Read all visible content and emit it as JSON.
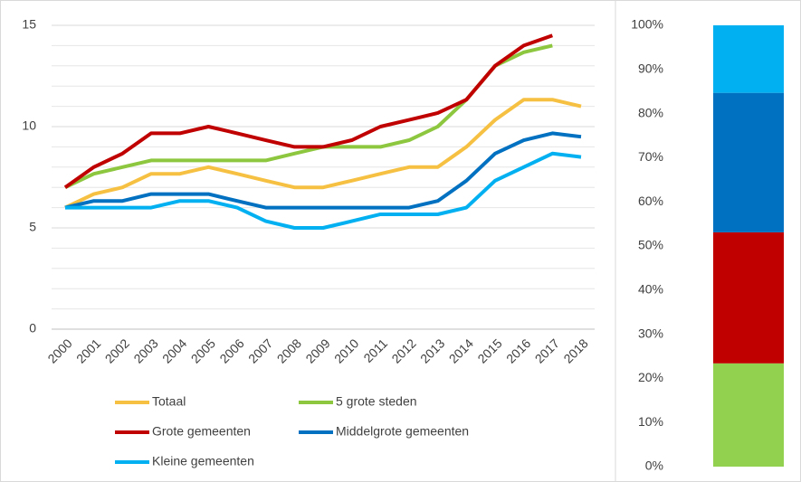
{
  "chart_data": [
    {
      "type": "line",
      "x": [
        2000,
        2001,
        2002,
        2003,
        2004,
        2005,
        2006,
        2007,
        2008,
        2009,
        2010,
        2011,
        2012,
        2013,
        2014,
        2015,
        2016,
        2017,
        2018
      ],
      "xlim": [
        2000,
        2018
      ],
      "ylim": [
        0,
        15
      ],
      "yticks": [
        0,
        5,
        10,
        15
      ],
      "minor_yticks": [
        1,
        2,
        3,
        4,
        6,
        7,
        8,
        9,
        11,
        12,
        13,
        14
      ],
      "grid": true,
      "series": [
        {
          "name": "Totaal",
          "color": "#f6c142",
          "values": [
            6,
            6.67,
            7,
            7.67,
            7.67,
            8,
            7.67,
            7.33,
            7,
            7,
            7.33,
            7.67,
            8,
            8,
            9,
            10.33,
            11.33,
            11.33,
            11
          ]
        },
        {
          "name": "5 grote steden",
          "color": "#8dc63f",
          "values": [
            7,
            7.67,
            8,
            8.33,
            8.33,
            8.33,
            8.33,
            8.33,
            8.67,
            9,
            9,
            9,
            9.33,
            10,
            11.33,
            13,
            13.67,
            14,
            null
          ]
        },
        {
          "name": "Grote gemeenten",
          "color": "#c00000",
          "values": [
            7,
            8,
            8.67,
            9.67,
            9.67,
            10,
            9.67,
            9.33,
            9,
            9,
            9.33,
            10,
            10.33,
            10.67,
            11.33,
            13,
            14,
            14.5,
            null
          ]
        },
        {
          "name": "Middelgrote gemeenten",
          "color": "#0070c0",
          "values": [
            6,
            6.33,
            6.33,
            6.67,
            6.67,
            6.67,
            6.33,
            6,
            6,
            6,
            6,
            6,
            6,
            6.33,
            7.33,
            8.67,
            9.33,
            9.67,
            9.5
          ]
        },
        {
          "name": "Kleine gemeenten",
          "color": "#00b0f0",
          "values": [
            6,
            6,
            6,
            6,
            6.33,
            6.33,
            6,
            5.33,
            5,
            5,
            5.33,
            5.67,
            5.67,
            5.67,
            6,
            7.33,
            8,
            8.67,
            8.5
          ]
        }
      ]
    },
    {
      "type": "stacked-bar",
      "ylim": [
        0,
        100
      ],
      "yticks": [
        {
          "value": 0,
          "label": "0%"
        },
        {
          "value": 10,
          "label": "10%"
        },
        {
          "value": 20,
          "label": "20%"
        },
        {
          "value": 30,
          "label": "30%"
        },
        {
          "value": 40,
          "label": "40%"
        },
        {
          "value": 50,
          "label": "50%"
        },
        {
          "value": 60,
          "label": "60%"
        },
        {
          "value": 70,
          "label": "70%"
        },
        {
          "value": 80,
          "label": "80%"
        },
        {
          "value": 90,
          "label": "90%"
        },
        {
          "value": 100,
          "label": "100%"
        }
      ],
      "series": [
        {
          "color": "#92d050",
          "values": [
            23.4
          ]
        },
        {
          "color": "#c00000",
          "values": [
            29.7
          ]
        },
        {
          "color": "#0070c0",
          "values": [
            31.6
          ]
        },
        {
          "color": "#00b0f0",
          "values": [
            15.3
          ]
        }
      ]
    }
  ]
}
